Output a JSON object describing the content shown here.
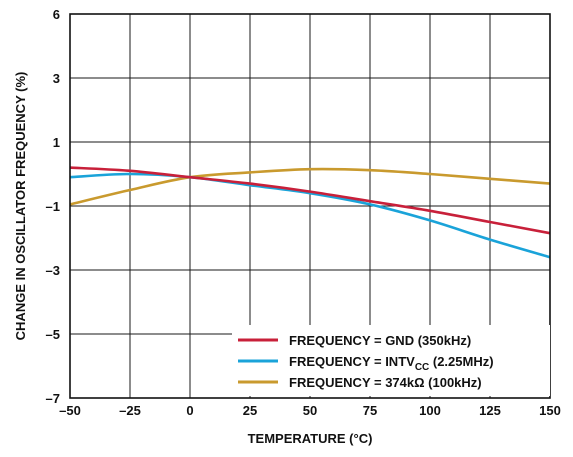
{
  "chart_data": {
    "type": "line",
    "xlabel": "TEMPERATURE (°C)",
    "ylabel": "CHANGE IN OSCILLATOR FREQUENCY (%)",
    "xlim": [
      -50,
      150
    ],
    "ylim": [
      -7,
      6
    ],
    "x_ticks": [
      -50,
      -25,
      0,
      25,
      50,
      75,
      100,
      125,
      150
    ],
    "x_tick_labels": [
      "–50",
      "–25",
      "0",
      "25",
      "50",
      "75",
      "100",
      "125",
      "150"
    ],
    "y_ticks": [
      -7,
      -5,
      -3,
      -1,
      1,
      3,
      6
    ],
    "y_tick_labels": [
      "–7",
      "–5",
      "–3",
      "–1",
      "1",
      "3",
      "6"
    ],
    "grid": true,
    "legend_position": "bottom-right",
    "x": [
      -50,
      -25,
      0,
      25,
      50,
      75,
      100,
      125,
      150
    ],
    "series": [
      {
        "name": "FREQUENCY = GND (350kHz)",
        "name_main": "FREQUENCY = GND (350kHz)",
        "color": "#c8203a",
        "values": [
          0.2,
          0.1,
          -0.1,
          -0.3,
          -0.55,
          -0.85,
          -1.15,
          -1.5,
          -1.85
        ]
      },
      {
        "name": "FREQUENCY = INTVCC (2.25MHz)",
        "name_main": "FREQUENCY = INTV",
        "name_sub": "CC",
        "name_tail": " (2.25MHz)",
        "color": "#1aa3d9",
        "values": [
          -0.1,
          0.0,
          -0.1,
          -0.35,
          -0.6,
          -0.95,
          -1.45,
          -2.05,
          -2.6
        ]
      },
      {
        "name": "FREQUENCY = 374kΩ (100kHz)",
        "name_main": "FREQUENCY = 374kΩ (100kHz)",
        "color": "#c99a2e",
        "values": [
          -0.95,
          -0.5,
          -0.1,
          0.05,
          0.15,
          0.12,
          0.0,
          -0.15,
          -0.3
        ]
      }
    ]
  }
}
